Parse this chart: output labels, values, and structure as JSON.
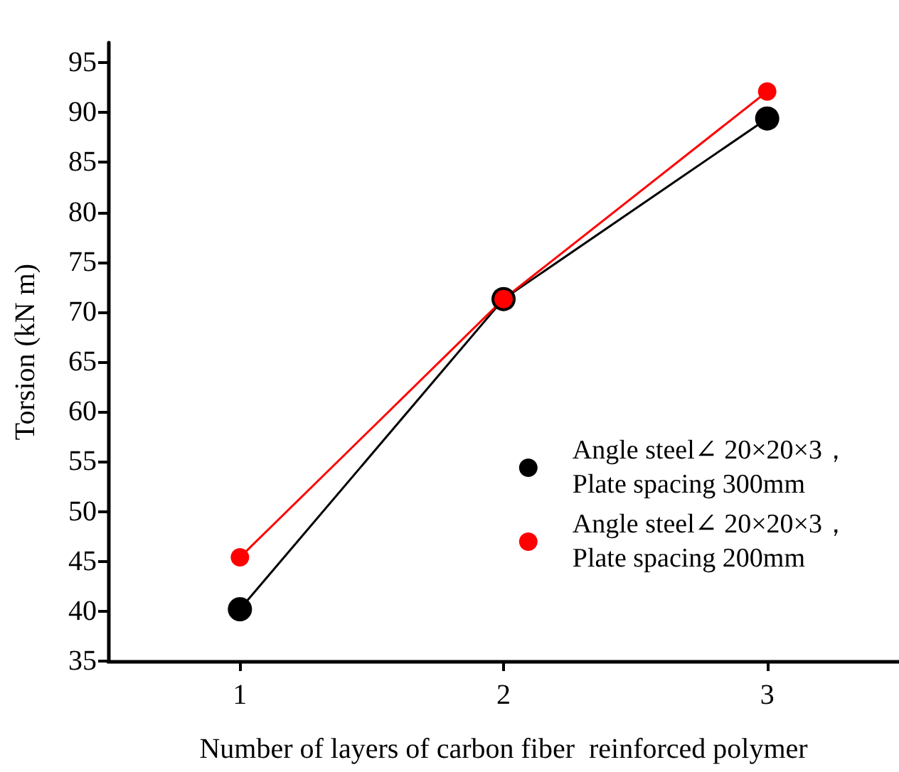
{
  "chart_data": {
    "type": "line",
    "xlabel": "Number of layers of carbon fiber  reinforced polymer",
    "ylabel": "Torsion (kN m)",
    "categories": [
      "1",
      "2",
      "3"
    ],
    "series": [
      {
        "name": "Angle steel∠ 20×20×3，\nPlate spacing 300mm",
        "color": "#000000",
        "values": [
          40.2,
          71.3,
          89.4
        ]
      },
      {
        "name": "Angle steel∠ 20×20×3，\nPlate spacing 200mm",
        "color": "#ff0000",
        "values": [
          45.4,
          71.3,
          92.1
        ]
      }
    ],
    "ylim": [
      35,
      97
    ],
    "yticks": [
      35,
      40,
      45,
      50,
      55,
      60,
      65,
      70,
      75,
      80,
      85,
      90,
      95
    ],
    "grid": false,
    "legend": "right",
    "marker": "circle",
    "line_style": "solid"
  }
}
